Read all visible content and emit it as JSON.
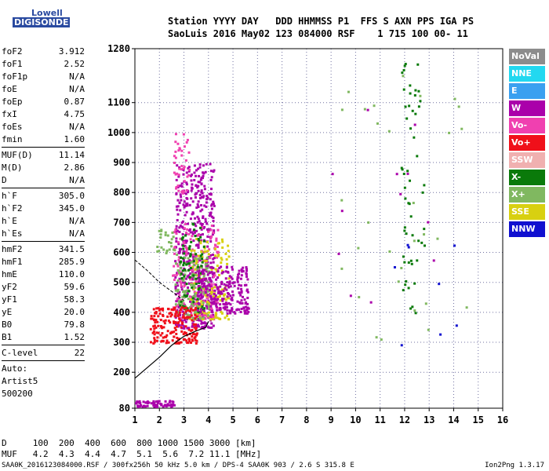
{
  "logo": {
    "line1": "Lowell",
    "line2": "DIGISONDE"
  },
  "header": {
    "row1": "Station YYYY DAY   DDD HHMMSS P1  FFS S AXN PPS IGA PS",
    "row2": "SaoLuis 2016 May02 123 084000 RSF    1 715 100 00- 11"
  },
  "params": {
    "group1": [
      {
        "name": "foF2",
        "value": "3.912"
      },
      {
        "name": "foF1",
        "value": "2.52"
      },
      {
        "name": "foF1p",
        "value": "N/A"
      },
      {
        "name": "foE",
        "value": "N/A"
      },
      {
        "name": "foEp",
        "value": "0.87"
      },
      {
        "name": "fxI",
        "value": "4.75"
      },
      {
        "name": "foEs",
        "value": "N/A"
      },
      {
        "name": "fmin",
        "value": "1.60"
      }
    ],
    "group2": [
      {
        "name": "MUF(D)",
        "value": "11.14"
      },
      {
        "name": "M(D)",
        "value": "2.86"
      },
      {
        "name": "D",
        "value": "N/A"
      }
    ],
    "group3": [
      {
        "name": "h`F",
        "value": "305.0"
      },
      {
        "name": "h`F2",
        "value": "345.0"
      },
      {
        "name": "h`E",
        "value": "N/A"
      },
      {
        "name": "h`Es",
        "value": "N/A"
      }
    ],
    "group4": [
      {
        "name": "hmF2",
        "value": "341.5"
      },
      {
        "name": "hmF1",
        "value": "285.9"
      },
      {
        "name": "hmE",
        "value": "110.0"
      },
      {
        "name": "yF2",
        "value": "59.6"
      },
      {
        "name": "yF1",
        "value": "58.3"
      },
      {
        "name": "yE",
        "value": "20.0"
      },
      {
        "name": "B0",
        "value": "79.8"
      },
      {
        "name": "B1",
        "value": "1.52"
      }
    ],
    "clevel": {
      "name": "C-level",
      "value": "22"
    },
    "auto": [
      "Auto:",
      "Artist5",
      "500200"
    ]
  },
  "legend": [
    {
      "label": "NoVal",
      "color": "#8c8c8c"
    },
    {
      "label": "NNE",
      "color": "#22d8f0"
    },
    {
      "label": "E",
      "color": "#3aa0f0"
    },
    {
      "label": "W",
      "color": "#aa00aa"
    },
    {
      "label": "Vo-",
      "color": "#f040b0"
    },
    {
      "label": "Vo+",
      "color": "#f0101a"
    },
    {
      "label": "SSW",
      "color": "#f0b0b0"
    },
    {
      "label": "X-",
      "color": "#0a7a0a"
    },
    {
      "label": "X+",
      "color": "#80b860"
    },
    {
      "label": "SSE",
      "color": "#d8d010"
    },
    {
      "label": "NNW",
      "color": "#1010d0"
    }
  ],
  "bottom": {
    "d_row": "D     100  200  400  600  800 1000 1500 3000 [km]",
    "muf_row": "MUF   4.2  4.3  4.4  4.7  5.1  5.6  7.2 11.1 [MHz]"
  },
  "footer": "SAA0K_2016123084000.RSF / 300fx256h 50 kHz 5.0 km / DPS-4 SAA0K 903 / 2.6 S 315.8 E",
  "version": "Ion2Png 1.3.17",
  "chart_data": {
    "type": "scatter",
    "x": [
      1,
      2,
      3,
      4,
      5,
      6,
      7,
      8,
      9,
      10,
      11,
      12,
      13,
      14,
      15,
      16
    ],
    "y_ticks": [
      80,
      200,
      300,
      400,
      500,
      600,
      700,
      800,
      900,
      1000,
      1100,
      1280
    ],
    "xlim": [
      1,
      16
    ],
    "ylim": [
      80,
      1280
    ],
    "grid": true,
    "trace": {
      "name": "",
      "points": [
        [
          1,
          180
        ],
        [
          1.5,
          215
        ],
        [
          2,
          250
        ],
        [
          2.5,
          290
        ],
        [
          3,
          320
        ],
        [
          3.5,
          338
        ],
        [
          3.9,
          350
        ],
        [
          4,
          370
        ]
      ]
    },
    "trace_dashed": {
      "points": [
        [
          1,
          575
        ],
        [
          1.5,
          540
        ],
        [
          2,
          500
        ],
        [
          2.5,
          470
        ],
        [
          3,
          440
        ]
      ]
    },
    "clusters": [
      {
        "color": "#aa00aa",
        "x": [
          2.6,
          4.2
        ],
        "y": [
          350,
          900
        ],
        "n": 520
      },
      {
        "color": "#f040b0",
        "x": [
          2.5,
          4.4
        ],
        "y": [
          380,
          700
        ],
        "n": 180
      },
      {
        "color": "#d8d010",
        "x": [
          3.2,
          4.8
        ],
        "y": [
          380,
          650
        ],
        "n": 140
      },
      {
        "color": "#80b860",
        "x": [
          2.6,
          4.0
        ],
        "y": [
          380,
          600
        ],
        "n": 120
      },
      {
        "color": "#0a7a0a",
        "x": [
          2.8,
          3.8
        ],
        "y": [
          400,
          700
        ],
        "n": 80
      },
      {
        "color": "#f0101a",
        "x": [
          1.6,
          3.5
        ],
        "y": [
          300,
          420
        ],
        "n": 180
      },
      {
        "color": "#aa00aa",
        "x": [
          3.5,
          5.6
        ],
        "y": [
          400,
          560
        ],
        "n": 220
      },
      {
        "color": "#f040b0",
        "x": [
          2.5,
          3.2
        ],
        "y": [
          800,
          1000
        ],
        "n": 40
      },
      {
        "color": "#aa00aa",
        "x": [
          1.0,
          2.6
        ],
        "y": [
          88,
          108
        ],
        "n": 60
      },
      {
        "color": "#80b860",
        "x": [
          1.8,
          2.6
        ],
        "y": [
          600,
          680
        ],
        "n": 25
      },
      {
        "color": "#0a7a0a",
        "x": [
          11.8,
          12.8
        ],
        "y": [
          400,
          1270
        ],
        "n": 55
      },
      {
        "color": "#80b860",
        "x": [
          9,
          14.5
        ],
        "y": [
          300,
          1200
        ],
        "n": 30
      },
      {
        "color": "#aa00aa",
        "x": [
          9,
          14
        ],
        "y": [
          400,
          1150
        ],
        "n": 12
      },
      {
        "color": "#1010d0",
        "x": [
          11,
          14.2
        ],
        "y": [
          250,
          700
        ],
        "n": 8
      }
    ]
  }
}
